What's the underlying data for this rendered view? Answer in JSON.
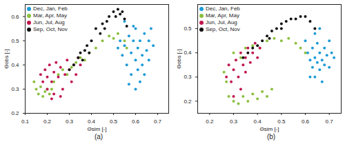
{
  "chart_data": [
    {
      "type": "scatter",
      "title": "(a)",
      "x_label": "Θsim [-]",
      "y_label": "Θobs [-]",
      "xlim": [
        0.1,
        0.75
      ],
      "xticks": [
        0.1,
        0.2,
        0.3,
        0.4,
        0.5,
        0.6,
        0.7
      ],
      "ylim": [
        0.2,
        0.65
      ],
      "yticks": [
        0.2,
        0.3,
        0.4,
        0.5,
        0.6
      ],
      "grid": false,
      "legend": "top-left",
      "series": [
        {
          "name": "Dec, Jan, Feb",
          "color": "#1e9bd7",
          "marker": "circle",
          "x": [
            0.52,
            0.53,
            0.54,
            0.55,
            0.56,
            0.57,
            0.58,
            0.58,
            0.59,
            0.6,
            0.6,
            0.61,
            0.61,
            0.62,
            0.62,
            0.63,
            0.63,
            0.64,
            0.64,
            0.65,
            0.66,
            0.66,
            0.67,
            0.68,
            0.6,
            0.55,
            0.57,
            0.59
          ],
          "values": [
            0.47,
            0.5,
            0.44,
            0.48,
            0.4,
            0.52,
            0.45,
            0.36,
            0.5,
            0.42,
            0.55,
            0.38,
            0.47,
            0.33,
            0.5,
            0.44,
            0.4,
            0.53,
            0.36,
            0.46,
            0.42,
            0.5,
            0.55,
            0.48,
            0.3,
            0.58,
            0.32,
            0.56
          ]
        },
        {
          "name": "Mar, Apr, May",
          "color": "#8cbf3f",
          "marker": "circle",
          "x": [
            0.14,
            0.15,
            0.16,
            0.17,
            0.18,
            0.19,
            0.2,
            0.21,
            0.22,
            0.23,
            0.25,
            0.27,
            0.29,
            0.31,
            0.33,
            0.35,
            0.37,
            0.39,
            0.42,
            0.45,
            0.48,
            0.5,
            0.52,
            0.55,
            0.56
          ],
          "values": [
            0.33,
            0.3,
            0.28,
            0.31,
            0.27,
            0.29,
            0.3,
            0.28,
            0.3,
            0.33,
            0.36,
            0.38,
            0.36,
            0.39,
            0.41,
            0.43,
            0.42,
            0.45,
            0.47,
            0.5,
            0.52,
            0.51,
            0.53,
            0.5,
            0.47
          ]
        },
        {
          "name": "Jun, Jul, Aug",
          "color": "#c0174f",
          "marker": "circle",
          "x": [
            0.17,
            0.18,
            0.19,
            0.2,
            0.2,
            0.21,
            0.22,
            0.23,
            0.23,
            0.24,
            0.25,
            0.26,
            0.27,
            0.28,
            0.29,
            0.3,
            0.31,
            0.32,
            0.33,
            0.34,
            0.35,
            0.22,
            0.26
          ],
          "values": [
            0.36,
            0.33,
            0.38,
            0.35,
            0.3,
            0.4,
            0.33,
            0.37,
            0.28,
            0.41,
            0.35,
            0.39,
            0.3,
            0.36,
            0.42,
            0.38,
            0.33,
            0.4,
            0.36,
            0.43,
            0.4,
            0.26,
            0.27
          ]
        },
        {
          "name": "Sep, Oct, Nov",
          "color": "#111111",
          "marker": "circle",
          "x": [
            0.3,
            0.32,
            0.34,
            0.35,
            0.36,
            0.37,
            0.38,
            0.39,
            0.4,
            0.42,
            0.44,
            0.45,
            0.47,
            0.48,
            0.5,
            0.51,
            0.52,
            0.53,
            0.54,
            0.55,
            0.56,
            0.46
          ],
          "values": [
            0.38,
            0.4,
            0.43,
            0.45,
            0.42,
            0.46,
            0.48,
            0.45,
            0.5,
            0.55,
            0.53,
            0.57,
            0.58,
            0.6,
            0.62,
            0.6,
            0.63,
            0.61,
            0.62,
            0.59,
            0.56,
            0.55
          ]
        }
      ]
    },
    {
      "type": "scatter",
      "title": "(b)",
      "x_label": "Θsim [-]",
      "y_label": "Θobs [-]",
      "xlim": [
        0.15,
        0.75
      ],
      "xticks": [
        0.2,
        0.3,
        0.4,
        0.5,
        0.6,
        0.7
      ],
      "ylim": [
        0.15,
        0.6
      ],
      "yticks": [
        0.2,
        0.3,
        0.4,
        0.5
      ],
      "grid": false,
      "legend": "top-left",
      "series": [
        {
          "name": "Dec, Jan, Feb",
          "color": "#1e9bd7",
          "marker": "circle",
          "x": [
            0.6,
            0.61,
            0.62,
            0.63,
            0.63,
            0.64,
            0.64,
            0.65,
            0.65,
            0.66,
            0.66,
            0.67,
            0.67,
            0.68,
            0.68,
            0.69,
            0.7,
            0.7,
            0.71,
            0.72,
            0.66,
            0.64,
            0.62
          ],
          "values": [
            0.45,
            0.4,
            0.37,
            0.42,
            0.34,
            0.38,
            0.3,
            0.36,
            0.44,
            0.33,
            0.4,
            0.37,
            0.28,
            0.35,
            0.42,
            0.39,
            0.34,
            0.45,
            0.4,
            0.38,
            0.5,
            0.48,
            0.3
          ]
        },
        {
          "name": "Mar, Apr, May",
          "color": "#8cbf3f",
          "marker": "circle",
          "x": [
            0.26,
            0.27,
            0.28,
            0.3,
            0.32,
            0.34,
            0.36,
            0.38,
            0.4,
            0.42,
            0.44,
            0.46,
            0.35,
            0.38,
            0.41,
            0.44,
            0.47,
            0.5,
            0.53,
            0.56,
            0.58,
            0.6,
            0.3,
            0.33
          ],
          "values": [
            0.32,
            0.28,
            0.22,
            0.2,
            0.19,
            0.22,
            0.2,
            0.23,
            0.21,
            0.24,
            0.22,
            0.25,
            0.42,
            0.43,
            0.42,
            0.45,
            0.46,
            0.45,
            0.46,
            0.44,
            0.42,
            0.4,
            0.4,
            0.38
          ]
        },
        {
          "name": "Jun, Jul, Aug",
          "color": "#c0174f",
          "marker": "circle",
          "x": [
            0.27,
            0.28,
            0.29,
            0.3,
            0.31,
            0.32,
            0.33,
            0.34,
            0.35,
            0.36,
            0.37,
            0.38,
            0.39,
            0.4,
            0.41,
            0.3,
            0.33,
            0.35
          ],
          "values": [
            0.3,
            0.35,
            0.28,
            0.33,
            0.37,
            0.3,
            0.4,
            0.35,
            0.38,
            0.42,
            0.36,
            0.4,
            0.44,
            0.38,
            0.42,
            0.22,
            0.25,
            0.32
          ]
        },
        {
          "name": "Sep, Oct, Nov",
          "color": "#111111",
          "marker": "circle",
          "x": [
            0.34,
            0.36,
            0.38,
            0.4,
            0.42,
            0.44,
            0.46,
            0.48,
            0.5,
            0.52,
            0.54,
            0.56,
            0.58,
            0.6,
            0.62,
            0.64,
            0.45,
            0.5
          ],
          "values": [
            0.38,
            0.4,
            0.42,
            0.43,
            0.45,
            0.47,
            0.49,
            0.5,
            0.52,
            0.53,
            0.54,
            0.54,
            0.55,
            0.55,
            0.53,
            0.5,
            0.46,
            0.5
          ]
        }
      ]
    }
  ]
}
